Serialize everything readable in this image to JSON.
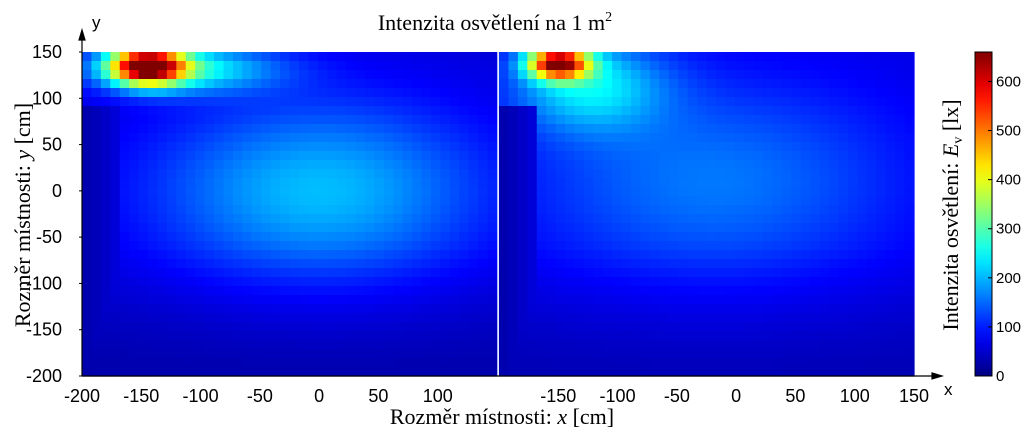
{
  "chart_data": {
    "type": "heatmap",
    "title": {
      "text": "Intenzita osvětlení na 1 m",
      "superscript": "2"
    },
    "xlabel": {
      "prefix": "Rozměr místnosti: ",
      "var": "x",
      "suffix": " [cm]"
    },
    "ylabel": {
      "prefix": "Rozměr místnosti: ",
      "var": "y",
      "suffix": " [cm]"
    },
    "colorbar_label": {
      "prefix": "Intenzita osvětlení: ",
      "var": "E",
      "sub": "v",
      "suffix": " [lx]"
    },
    "x_axis_letter": "x",
    "y_axis_letter": "y",
    "colormap": "jet",
    "colorbar_range": [
      0,
      660
    ],
    "colorbar_ticks": [
      "0",
      "100",
      "200",
      "300",
      "400",
      "500",
      "600"
    ],
    "panels": [
      {
        "xlim": [
          -200,
          150
        ],
        "ylim": [
          -200,
          150
        ],
        "x_ticks": [
          "-200",
          "-150",
          "-100",
          "-50",
          "0",
          "50",
          "100"
        ],
        "y_ticks": [
          "150",
          "100",
          "50",
          "0",
          "-50",
          "-100",
          "-150",
          "-200"
        ],
        "background": 55,
        "hotspots": [
          {
            "x": -145,
            "y": 135,
            "value": 560,
            "sx": 22,
            "sy": 14
          },
          {
            "x": -115,
            "y": 132,
            "value": 190,
            "sx": 55,
            "sy": 18
          },
          {
            "x": 0,
            "y": 0,
            "value": 150,
            "sx": 100,
            "sy": 70
          }
        ],
        "dark_region": {
          "x_max": -165,
          "value": 30
        }
      },
      {
        "xlim": [
          -200,
          150
        ],
        "ylim": [
          -200,
          150
        ],
        "x_ticks": [
          "-150",
          "-100",
          "-50",
          "0",
          "50",
          "100",
          "150"
        ],
        "background": 60,
        "hotspots": [
          {
            "x": -150,
            "y": 138,
            "value": 520,
            "sx": 18,
            "sy": 12
          },
          {
            "x": -125,
            "y": 115,
            "value": 160,
            "sx": 45,
            "sy": 35
          },
          {
            "x": -20,
            "y": 10,
            "value": 100,
            "sx": 115,
            "sy": 80
          }
        ],
        "dark_region": {
          "x_max": -165,
          "value": 30
        }
      }
    ]
  }
}
